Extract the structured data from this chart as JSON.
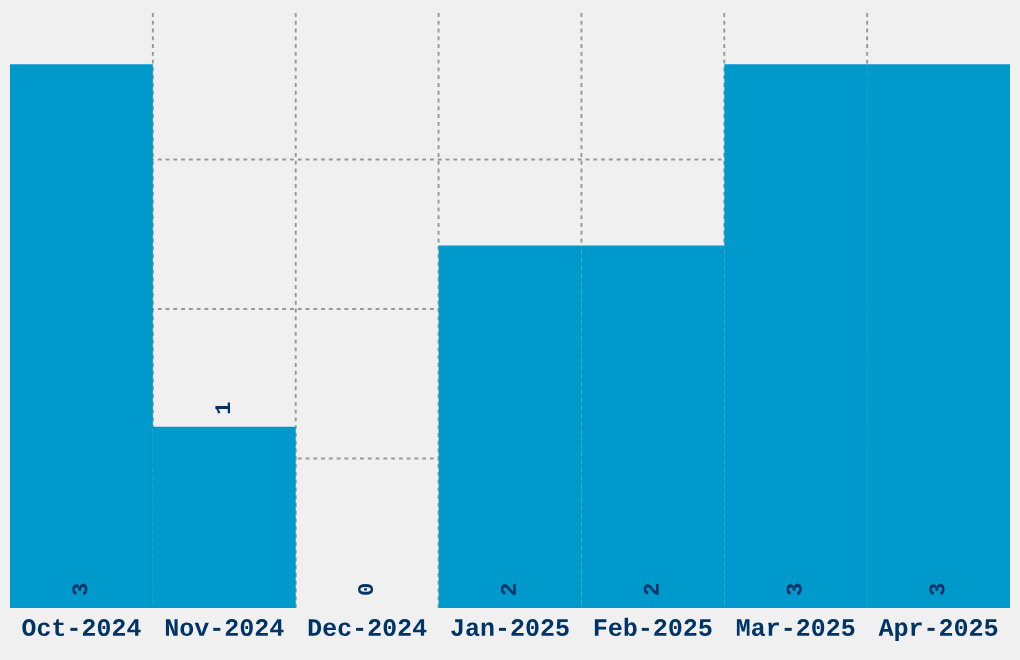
{
  "chart_data": {
    "type": "bar",
    "categories": [
      "Oct-2024",
      "Nov-2024",
      "Dec-2024",
      "Jan-2025",
      "Feb-2025",
      "Mar-2025",
      "Apr-2025"
    ],
    "values": [
      3,
      1,
      0,
      2,
      2,
      3,
      3
    ],
    "color": "#0099cc",
    "ylim": [
      0,
      3.3
    ],
    "yticks": [
      {
        "value": 0.825,
        "label": null
      },
      {
        "value": 1.65,
        "label": null
      },
      {
        "value": 2.475,
        "label": null
      }
    ],
    "tick_labels": "x",
    "grid": true,
    "data_labels": true
  }
}
